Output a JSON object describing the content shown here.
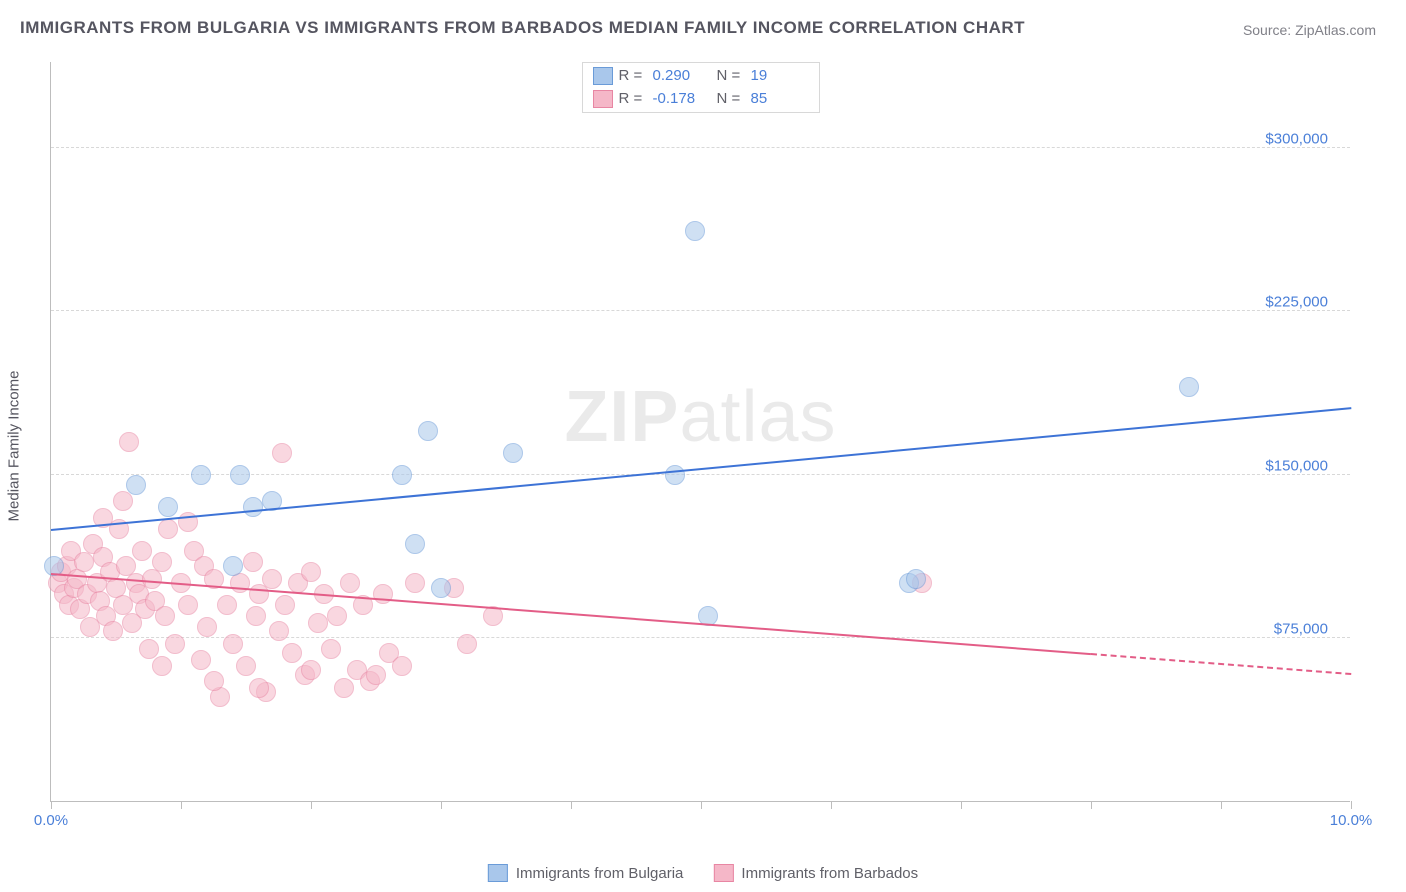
{
  "title": "IMMIGRANTS FROM BULGARIA VS IMMIGRANTS FROM BARBADOS MEDIAN FAMILY INCOME CORRELATION CHART",
  "source_prefix": "Source: ",
  "source_name": "ZipAtlas.com",
  "watermark": "ZIPatlas",
  "ylabel": "Median Family Income",
  "chart": {
    "type": "scatter",
    "xlim": [
      0,
      10
    ],
    "ylim": [
      0,
      340000
    ],
    "x_tick_positions": [
      0,
      1,
      2,
      3,
      4,
      5,
      6,
      7,
      8,
      9,
      10
    ],
    "x_tick_labels": {
      "0": "0.0%",
      "10": "10.0%"
    },
    "y_gridlines": [
      75000,
      150000,
      225000,
      300000
    ],
    "y_tick_labels": {
      "75000": "$75,000",
      "150000": "$150,000",
      "225000": "$225,000",
      "300000": "$300,000"
    },
    "background_color": "#ffffff",
    "grid_color": "#d8d8d8",
    "axis_color": "#bdbdbd",
    "tick_label_color": "#4a7fd8",
    "axis_label_color": "#565660"
  },
  "series": [
    {
      "name": "Immigigrants from Bulgaria",
      "label": "Immigrants from Bulgaria",
      "fill_color": "#a9c7eb",
      "fill_opacity": 0.55,
      "stroke_color": "#6a9bd8",
      "marker_radius": 10,
      "R": "0.290",
      "N": "19",
      "trend": {
        "x1": 0,
        "y1": 124000,
        "x2": 10,
        "y2": 180000,
        "color": "#3d73d6",
        "dash_from_x": null
      },
      "points": [
        [
          0.02,
          108000
        ],
        [
          0.65,
          145000
        ],
        [
          0.9,
          135000
        ],
        [
          1.15,
          150000
        ],
        [
          1.4,
          108000
        ],
        [
          1.45,
          150000
        ],
        [
          1.55,
          135000
        ],
        [
          1.7,
          138000
        ],
        [
          2.7,
          150000
        ],
        [
          2.8,
          118000
        ],
        [
          3.0,
          98000
        ],
        [
          2.9,
          170000
        ],
        [
          3.55,
          160000
        ],
        [
          4.8,
          150000
        ],
        [
          4.95,
          262000
        ],
        [
          5.05,
          85000
        ],
        [
          6.6,
          100000
        ],
        [
          6.65,
          102000
        ],
        [
          8.75,
          190000
        ]
      ]
    },
    {
      "name": "Immigrants from Barbados",
      "label": "Immigrants from Barbados",
      "fill_color": "#f5b7c8",
      "fill_opacity": 0.55,
      "stroke_color": "#e886a3",
      "marker_radius": 10,
      "R": "-0.178",
      "N": "85",
      "trend": {
        "x1": 0,
        "y1": 104000,
        "x2": 10,
        "y2": 58000,
        "color": "#e35d87",
        "dash_from_x": 8.0
      },
      "points": [
        [
          0.05,
          100000
        ],
        [
          0.08,
          105000
        ],
        [
          0.1,
          95000
        ],
        [
          0.12,
          108000
        ],
        [
          0.14,
          90000
        ],
        [
          0.15,
          115000
        ],
        [
          0.18,
          98000
        ],
        [
          0.2,
          102000
        ],
        [
          0.22,
          88000
        ],
        [
          0.25,
          110000
        ],
        [
          0.28,
          95000
        ],
        [
          0.3,
          80000
        ],
        [
          0.32,
          118000
        ],
        [
          0.35,
          100000
        ],
        [
          0.38,
          92000
        ],
        [
          0.4,
          112000
        ],
        [
          0.42,
          85000
        ],
        [
          0.45,
          105000
        ],
        [
          0.48,
          78000
        ],
        [
          0.5,
          98000
        ],
        [
          0.52,
          125000
        ],
        [
          0.55,
          90000
        ],
        [
          0.58,
          108000
        ],
        [
          0.6,
          165000
        ],
        [
          0.62,
          82000
        ],
        [
          0.65,
          100000
        ],
        [
          0.68,
          95000
        ],
        [
          0.7,
          115000
        ],
        [
          0.72,
          88000
        ],
        [
          0.75,
          70000
        ],
        [
          0.78,
          102000
        ],
        [
          0.8,
          92000
        ],
        [
          0.85,
          110000
        ],
        [
          0.88,
          85000
        ],
        [
          0.9,
          125000
        ],
        [
          0.95,
          72000
        ],
        [
          1.0,
          100000
        ],
        [
          1.05,
          90000
        ],
        [
          1.1,
          115000
        ],
        [
          1.15,
          65000
        ],
        [
          1.18,
          108000
        ],
        [
          1.2,
          80000
        ],
        [
          1.25,
          102000
        ],
        [
          1.3,
          48000
        ],
        [
          1.35,
          90000
        ],
        [
          1.4,
          72000
        ],
        [
          1.45,
          100000
        ],
        [
          1.5,
          62000
        ],
        [
          1.55,
          110000
        ],
        [
          1.58,
          85000
        ],
        [
          1.6,
          95000
        ],
        [
          1.65,
          50000
        ],
        [
          1.7,
          102000
        ],
        [
          1.75,
          78000
        ],
        [
          1.78,
          160000
        ],
        [
          1.8,
          90000
        ],
        [
          1.85,
          68000
        ],
        [
          1.9,
          100000
        ],
        [
          1.95,
          58000
        ],
        [
          2.0,
          105000
        ],
        [
          2.05,
          82000
        ],
        [
          2.1,
          95000
        ],
        [
          2.15,
          70000
        ],
        [
          2.2,
          85000
        ],
        [
          2.25,
          52000
        ],
        [
          2.3,
          100000
        ],
        [
          2.35,
          60000
        ],
        [
          2.4,
          90000
        ],
        [
          2.45,
          55000
        ],
        [
          2.5,
          58000
        ],
        [
          2.55,
          95000
        ],
        [
          2.6,
          68000
        ],
        [
          2.7,
          62000
        ],
        [
          2.8,
          100000
        ],
        [
          3.1,
          98000
        ],
        [
          3.2,
          72000
        ],
        [
          3.4,
          85000
        ],
        [
          1.05,
          128000
        ],
        [
          0.4,
          130000
        ],
        [
          0.55,
          138000
        ],
        [
          0.85,
          62000
        ],
        [
          1.25,
          55000
        ],
        [
          1.6,
          52000
        ],
        [
          2.0,
          60000
        ],
        [
          6.7,
          100000
        ]
      ]
    }
  ],
  "legend_top": {
    "r_label": "R  =",
    "n_label": "N  ="
  },
  "legend_bottom_items": [
    {
      "swatch_fill": "#a9c7eb",
      "swatch_stroke": "#6a9bd8",
      "label": "Immigrants from Bulgaria"
    },
    {
      "swatch_fill": "#f5b7c8",
      "swatch_stroke": "#e886a3",
      "label": "Immigrants from Barbados"
    }
  ]
}
